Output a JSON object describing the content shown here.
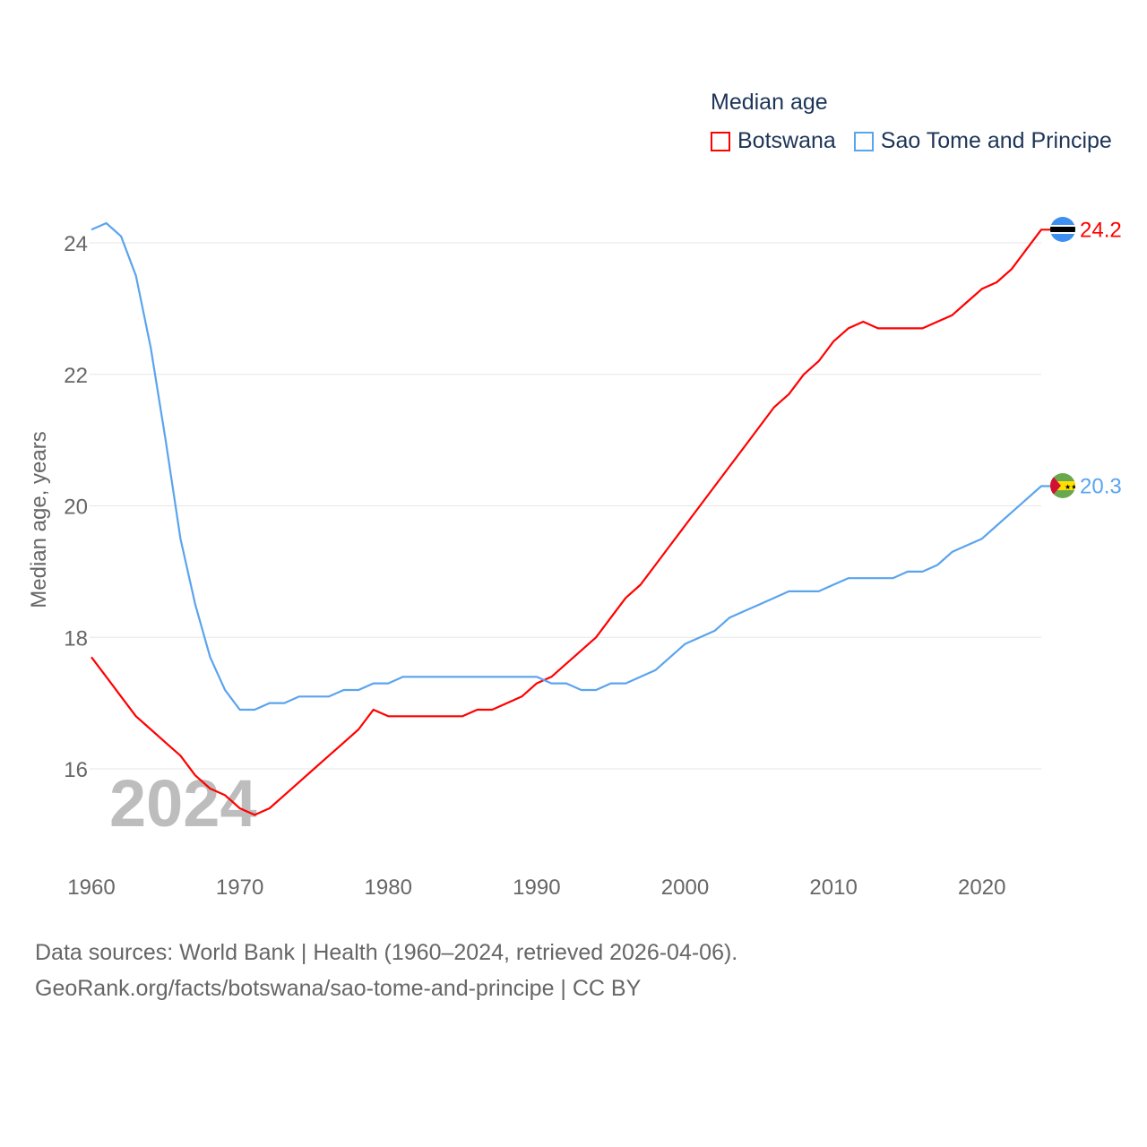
{
  "legend": {
    "title": "Median age",
    "items": [
      {
        "label": "Botswana",
        "color": "#ff0000"
      },
      {
        "label": "Sao Tome and Principe",
        "color": "#5aa4ee"
      }
    ]
  },
  "footer": {
    "line1": "Data sources: World Bank | Health (1960–2024, retrieved 2026-04-06).",
    "line2": "GeoRank.org/facts/botswana/sao-tome-and-principe | CC BY"
  },
  "chart_data": {
    "type": "line",
    "title": "Median age",
    "ylabel": "Median age, years",
    "xlabel": "",
    "watermark_year": "2024",
    "xlim": [
      1960,
      2024
    ],
    "ylim": [
      15,
      24.6
    ],
    "xticks": [
      1960,
      1970,
      1980,
      1990,
      2000,
      2010,
      2020
    ],
    "yticks": [
      16,
      18,
      20,
      22,
      24
    ],
    "grid": true,
    "legend_position": "top-right",
    "x": [
      1960,
      1961,
      1962,
      1963,
      1964,
      1965,
      1966,
      1967,
      1968,
      1969,
      1970,
      1971,
      1972,
      1973,
      1974,
      1975,
      1976,
      1977,
      1978,
      1979,
      1980,
      1981,
      1982,
      1983,
      1984,
      1985,
      1986,
      1987,
      1988,
      1989,
      1990,
      1991,
      1992,
      1993,
      1994,
      1995,
      1996,
      1997,
      1998,
      1999,
      2000,
      2001,
      2002,
      2003,
      2004,
      2005,
      2006,
      2007,
      2008,
      2009,
      2010,
      2011,
      2012,
      2013,
      2014,
      2015,
      2016,
      2017,
      2018,
      2019,
      2020,
      2021,
      2022,
      2023,
      2024
    ],
    "series": [
      {
        "name": "Botswana",
        "color": "#ff0000",
        "end_label": "24.2",
        "values": [
          17.7,
          17.4,
          17.1,
          16.8,
          16.6,
          16.4,
          16.2,
          15.9,
          15.7,
          15.6,
          15.4,
          15.3,
          15.4,
          15.6,
          15.8,
          16.0,
          16.2,
          16.4,
          16.6,
          16.9,
          16.8,
          16.8,
          16.8,
          16.8,
          16.8,
          16.8,
          16.9,
          16.9,
          17.0,
          17.1,
          17.3,
          17.4,
          17.6,
          17.8,
          18.0,
          18.3,
          18.6,
          18.8,
          19.1,
          19.4,
          19.7,
          20.0,
          20.3,
          20.6,
          20.9,
          21.2,
          21.5,
          21.7,
          22.0,
          22.2,
          22.5,
          22.7,
          22.8,
          22.7,
          22.7,
          22.7,
          22.7,
          22.8,
          22.9,
          23.1,
          23.3,
          23.4,
          23.6,
          23.9,
          24.2
        ]
      },
      {
        "name": "Sao Tome and Principe",
        "color": "#5aa4ee",
        "end_label": "20.3",
        "values": [
          24.2,
          24.3,
          24.1,
          23.5,
          22.4,
          21.0,
          19.5,
          18.5,
          17.7,
          17.2,
          16.9,
          16.9,
          17.0,
          17.0,
          17.1,
          17.1,
          17.1,
          17.2,
          17.2,
          17.3,
          17.3,
          17.4,
          17.4,
          17.4,
          17.4,
          17.4,
          17.4,
          17.4,
          17.4,
          17.4,
          17.4,
          17.3,
          17.3,
          17.2,
          17.2,
          17.3,
          17.3,
          17.4,
          17.5,
          17.7,
          17.9,
          18.0,
          18.1,
          18.3,
          18.4,
          18.5,
          18.6,
          18.7,
          18.7,
          18.7,
          18.8,
          18.9,
          18.9,
          18.9,
          18.9,
          19.0,
          19.0,
          19.1,
          19.3,
          19.4,
          19.5,
          19.7,
          19.9,
          20.1,
          20.3
        ]
      }
    ]
  }
}
